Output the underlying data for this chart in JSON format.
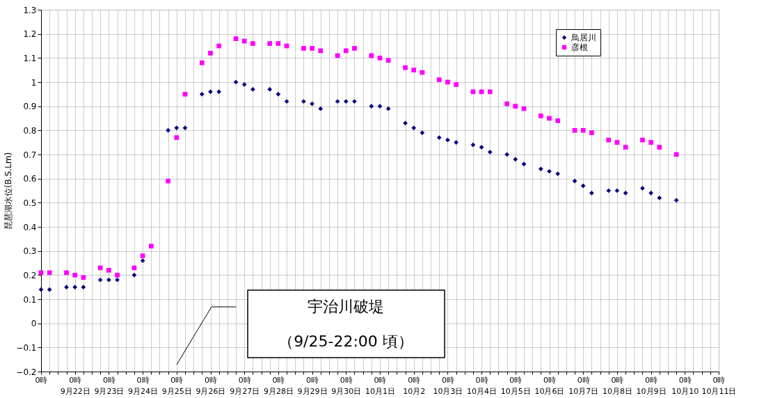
{
  "chart_data": {
    "type": "scatter",
    "ylabel": "琵琶湖水位(B.S.Lm)",
    "categories": [
      "0時",
      null,
      null,
      null,
      "0時\n9月22日",
      null,
      null,
      null,
      "0時\n9月23日",
      null,
      null,
      null,
      "0時\n9月24日",
      null,
      null,
      null,
      "0時\n9月25日",
      null,
      null,
      null,
      "0時\n9月26日",
      null,
      null,
      null,
      "0時\n9月27日",
      null,
      null,
      null,
      "0時\n9月28日",
      null,
      null,
      null,
      "0時\n9月29日",
      null,
      null,
      null,
      "0時\n9月30日",
      null,
      null,
      null,
      "0時\n10月1日",
      null,
      null,
      null,
      "0時\n10月2",
      null,
      null,
      null,
      "0時\n10月3日",
      null,
      null,
      null,
      "0時\n10月4日",
      null,
      null,
      null,
      "0時\n10月5日",
      null,
      null,
      null,
      "0時\n10月6日",
      null,
      null,
      null,
      "0時\n10月7日",
      null,
      null,
      null,
      "0時\n10月8日",
      null,
      null,
      null,
      "0時\n10月9日",
      null,
      null,
      null,
      "0時\n10月10",
      null,
      null,
      null,
      "0時\n10月11日"
    ],
    "series": [
      {
        "name": "鳥居川",
        "color": "#000080",
        "marker": "diamond",
        "values": [
          0.14,
          0.14,
          null,
          0.15,
          0.15,
          0.15,
          null,
          0.18,
          0.18,
          0.18,
          null,
          0.2,
          0.26,
          null,
          null,
          0.8,
          0.81,
          0.81,
          null,
          0.95,
          0.96,
          0.96,
          null,
          1.0,
          0.99,
          0.97,
          null,
          0.97,
          0.95,
          0.92,
          null,
          0.92,
          0.91,
          0.89,
          null,
          0.92,
          0.92,
          0.92,
          null,
          0.9,
          0.9,
          0.89,
          null,
          0.83,
          0.81,
          0.79,
          null,
          0.77,
          0.76,
          0.75,
          null,
          0.74,
          0.73,
          0.71,
          null,
          0.7,
          0.68,
          0.66,
          null,
          0.64,
          0.63,
          0.62,
          null,
          0.59,
          0.57,
          0.54,
          null,
          0.55,
          0.55,
          0.54,
          null,
          0.56,
          0.54,
          0.52,
          null,
          0.51,
          null,
          null,
          null,
          null,
          null
        ]
      },
      {
        "name": "彦根",
        "color": "#ff00ff",
        "marker": "square",
        "values": [
          0.21,
          0.21,
          null,
          0.21,
          0.2,
          0.19,
          null,
          0.23,
          0.22,
          0.2,
          null,
          0.23,
          0.28,
          0.32,
          null,
          0.59,
          0.77,
          0.95,
          null,
          1.08,
          1.12,
          1.15,
          null,
          1.18,
          1.17,
          1.16,
          null,
          1.16,
          1.16,
          1.15,
          null,
          1.14,
          1.14,
          1.13,
          null,
          1.11,
          1.13,
          1.14,
          null,
          1.11,
          1.1,
          1.09,
          null,
          1.06,
          1.05,
          1.04,
          null,
          1.01,
          1.0,
          0.99,
          null,
          0.96,
          0.96,
          0.96,
          null,
          0.91,
          0.9,
          0.89,
          null,
          0.86,
          0.85,
          0.84,
          null,
          0.8,
          0.8,
          0.79,
          null,
          0.76,
          0.75,
          0.73,
          null,
          0.76,
          0.75,
          0.73,
          null,
          0.7,
          null,
          null,
          null,
          null,
          null
        ]
      }
    ],
    "ylim": [
      -0.2,
      1.3
    ],
    "yticks": [
      -0.2,
      -0.1,
      0,
      0.1,
      0.2,
      0.3,
      0.4,
      0.5,
      0.6,
      0.7,
      0.8,
      0.9,
      1,
      1.1,
      1.2,
      1.3
    ],
    "grid": true,
    "legend": "top right",
    "annotations": [
      "宇治川破堤",
      "（9/25-22:00 頃）"
    ]
  }
}
